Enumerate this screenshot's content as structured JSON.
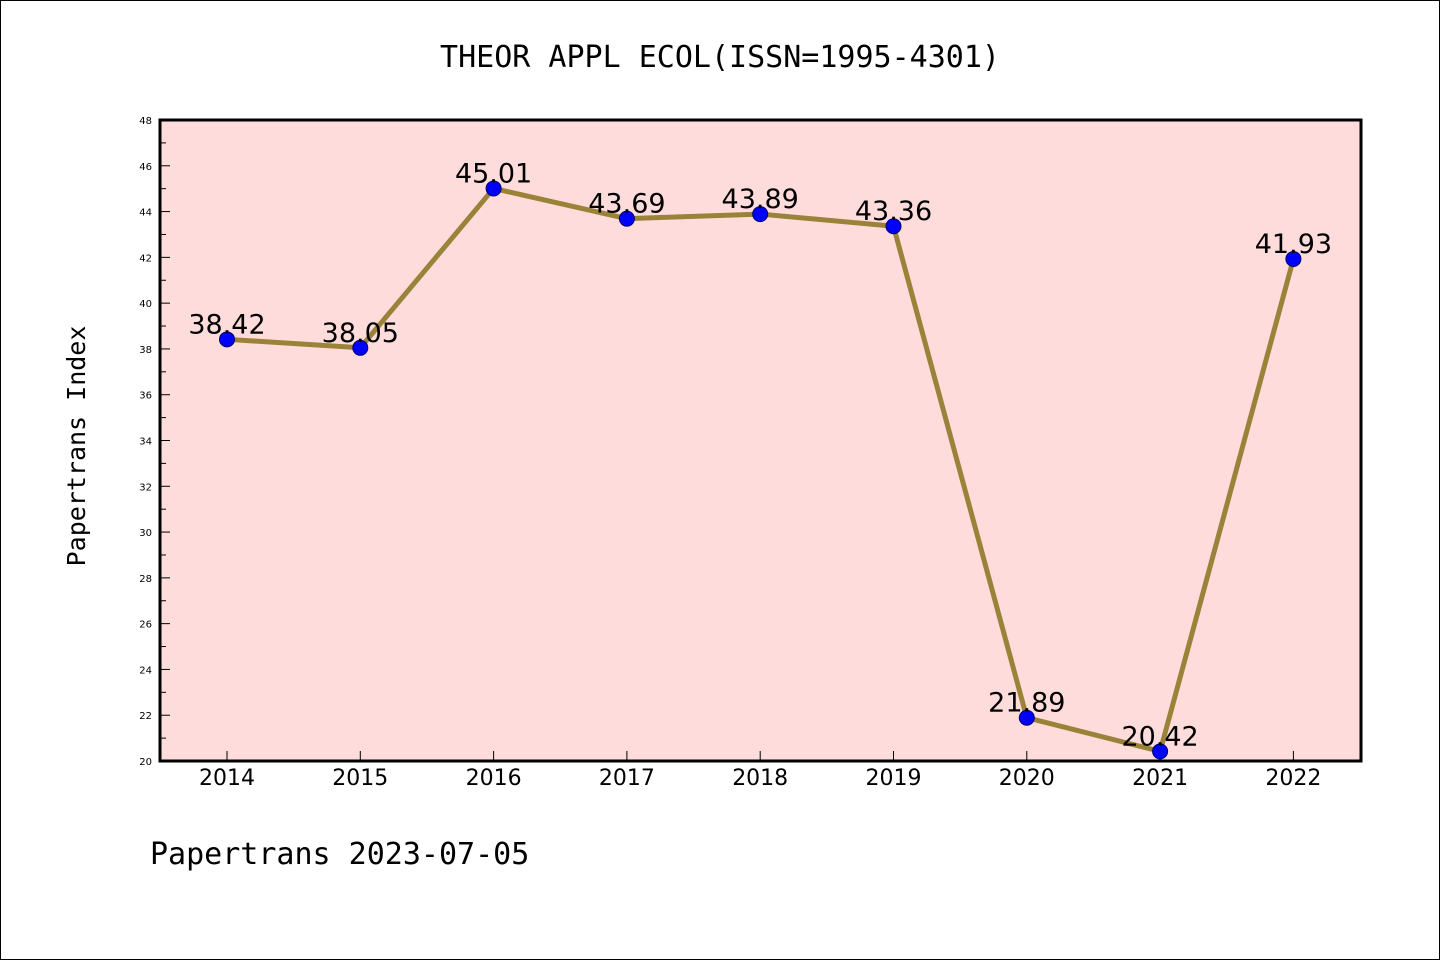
{
  "chart_data": {
    "type": "line",
    "title": "THEOR APPL ECOL(ISSN=1995-4301)",
    "ylabel": "Papertrans Index",
    "xlabel": "",
    "footer": "Papertrans 2023-07-05",
    "categories": [
      "2014",
      "2015",
      "2016",
      "2017",
      "2018",
      "2019",
      "2020",
      "2021",
      "2022"
    ],
    "values": [
      38.42,
      38.05,
      45.01,
      43.69,
      43.89,
      43.36,
      21.89,
      20.42,
      41.93
    ],
    "value_labels": [
      "38.42",
      "38.05",
      "45.01",
      "43.69",
      "43.89",
      "43.36",
      "21.89",
      "20.42",
      "41.93"
    ],
    "ylim": [
      20,
      48
    ],
    "yticks": [
      20,
      22,
      24,
      26,
      28,
      30,
      32,
      34,
      36,
      38,
      40,
      42,
      44,
      46,
      48
    ],
    "grid": false,
    "colors": {
      "plot_background": "#ffdcdc",
      "line": "#9a8238",
      "marker": "#0000ff"
    }
  }
}
